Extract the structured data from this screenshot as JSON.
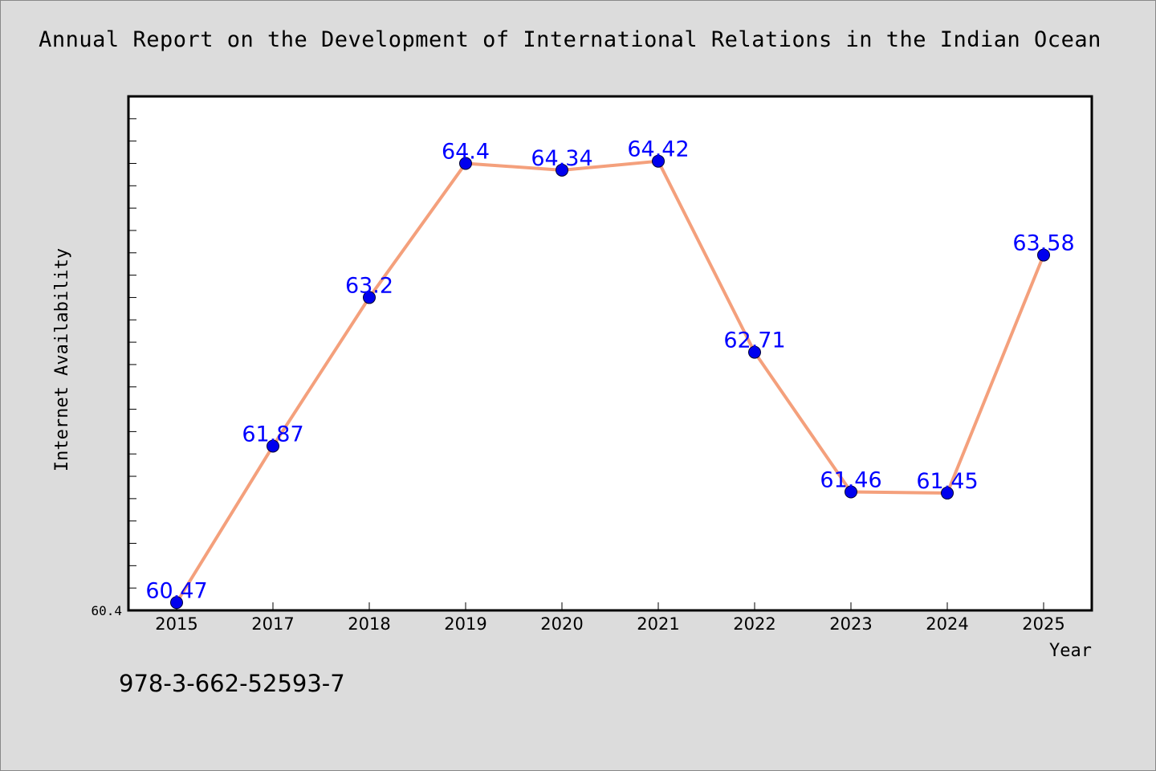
{
  "title": "Annual Report on the Development of International Relations in the Indian Ocean",
  "footer_code": "978-3-662-52593-7",
  "chart_data": {
    "type": "line",
    "title": "Annual Report on the Development of International Relations in the Indian Ocean",
    "xlabel": "Year",
    "ylabel": "Internet Availability",
    "categories": [
      "2015",
      "2017",
      "2018",
      "2019",
      "2020",
      "2021",
      "2022",
      "2023",
      "2024",
      "2025"
    ],
    "series": [
      {
        "values": [
          60.47,
          61.87,
          63.2,
          64.4,
          64.34,
          64.42,
          62.71,
          61.46,
          61.45,
          63.58
        ],
        "labels": [
          "60.47",
          "61.87",
          "63.2",
          "64.4",
          "64.34",
          "64.42",
          "62.71",
          "61.46",
          "61.45",
          "63.58"
        ]
      }
    ],
    "ylim": [
      60.4,
      65.0
    ],
    "y_tick_labels": [
      "60.4"
    ],
    "grid": false,
    "colors": {
      "line": "#f4a07c",
      "marker": "#0000ee",
      "label": "#0000ff",
      "plot_bg": "#ffffff",
      "page_bg": "#dcdcdc"
    }
  }
}
